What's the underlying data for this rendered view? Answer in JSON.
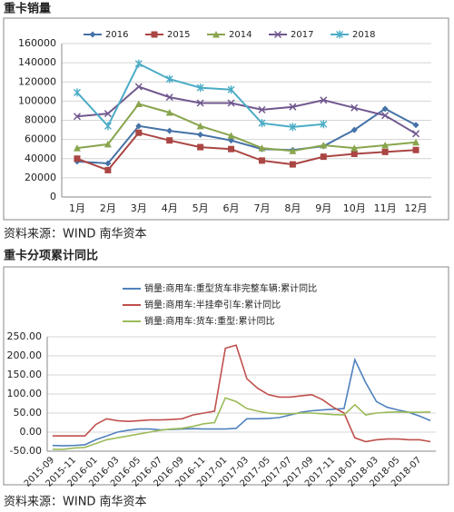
{
  "chart_data": [
    {
      "type": "line",
      "title": "重卡销量",
      "source": "资料来源：WIND 南华资本",
      "categories": [
        "1月",
        "2月",
        "3月",
        "4月",
        "5月",
        "6月",
        "7月",
        "8月",
        "9月",
        "10月",
        "11月",
        "12月"
      ],
      "ylim": [
        0,
        160000
      ],
      "yticks": [
        0,
        20000,
        40000,
        60000,
        80000,
        100000,
        120000,
        140000,
        160000
      ],
      "grid": true,
      "legend": "top",
      "series": [
        {
          "name": "2016",
          "color": "#4572A7",
          "marker": "diamond",
          "values": [
            37000,
            35000,
            74000,
            69000,
            65000,
            59000,
            50000,
            49000,
            53000,
            70000,
            92000,
            75000
          ]
        },
        {
          "name": "2015",
          "color": "#AA4643",
          "marker": "square",
          "values": [
            40000,
            28000,
            67000,
            59000,
            52000,
            50000,
            38000,
            34000,
            42000,
            45000,
            47000,
            49000
          ]
        },
        {
          "name": "2014",
          "color": "#89A54E",
          "marker": "triangle",
          "values": [
            51000,
            55000,
            97000,
            88000,
            74000,
            64000,
            51000,
            48000,
            54000,
            51000,
            54000,
            57000
          ]
        },
        {
          "name": "2017",
          "color": "#71588F",
          "marker": "x",
          "values": [
            84000,
            87000,
            115000,
            104000,
            98000,
            98000,
            91000,
            94000,
            101000,
            93000,
            85000,
            66000
          ]
        },
        {
          "name": "2018",
          "color": "#4BACC6",
          "marker": "star",
          "values": [
            109000,
            74000,
            139000,
            123000,
            114000,
            112000,
            77000,
            73000,
            76000,
            null,
            null,
            null
          ]
        }
      ]
    },
    {
      "type": "line",
      "title": "重卡分项累计同比",
      "source": "资料来源：WIND 南华资本",
      "categories": [
        "2015-09",
        null,
        "2015-11",
        null,
        "2016-01",
        null,
        "2016-03",
        null,
        "2016-05",
        null,
        "2016-07",
        null,
        "2016-09",
        null,
        "2016-11",
        null,
        "2017-01",
        null,
        "2017-03",
        null,
        "2017-05",
        null,
        "2017-07",
        null,
        "2017-09",
        null,
        "2017-11",
        null,
        "2018-01",
        null,
        "2018-03",
        null,
        "2018-05",
        null,
        "2018-07",
        null
      ],
      "ylim": [
        -50,
        250
      ],
      "yticks": [
        {
          "value": -50,
          "label": "-50.00"
        },
        {
          "value": 0,
          "label": "0.00"
        },
        {
          "value": 50,
          "label": "50.00"
        },
        {
          "value": 100,
          "label": "100.00"
        },
        {
          "value": 150,
          "label": "150.00"
        },
        {
          "value": 200,
          "label": "200.00"
        },
        {
          "value": 250,
          "label": "250.00"
        }
      ],
      "grid": true,
      "legend": "top",
      "series": [
        {
          "name": "销量:商用车:重型货车非完整车辆:累计同比",
          "color": "#4F81BD",
          "values": [
            -35,
            -36,
            -35,
            -33,
            -20,
            -10,
            0,
            5,
            8,
            8,
            6,
            7,
            8,
            9,
            8,
            8,
            8,
            10,
            35,
            35,
            36,
            38,
            45,
            52,
            56,
            58,
            60,
            62,
            190,
            130,
            80,
            65,
            58,
            52,
            42,
            30
          ]
        },
        {
          "name": "销量:商用车:半挂牵引车:累计同比",
          "color": "#C0504D",
          "values": [
            -10,
            -10,
            -10,
            -10,
            20,
            35,
            30,
            28,
            30,
            32,
            32,
            33,
            35,
            45,
            50,
            55,
            220,
            228,
            140,
            115,
            98,
            92,
            92,
            95,
            98,
            85,
            65,
            50,
            -15,
            -25,
            -20,
            -18,
            -18,
            -20,
            -20,
            -25
          ]
        },
        {
          "name": "销量:商用车:货车:重型:累计同比",
          "color": "#9BBB59",
          "values": [
            -45,
            -45,
            -42,
            -40,
            -30,
            -20,
            -15,
            -10,
            -5,
            0,
            5,
            8,
            10,
            15,
            22,
            25,
            90,
            80,
            62,
            55,
            50,
            48,
            48,
            50,
            50,
            48,
            46,
            45,
            72,
            45,
            50,
            52,
            53,
            52,
            52,
            53
          ]
        }
      ]
    }
  ]
}
